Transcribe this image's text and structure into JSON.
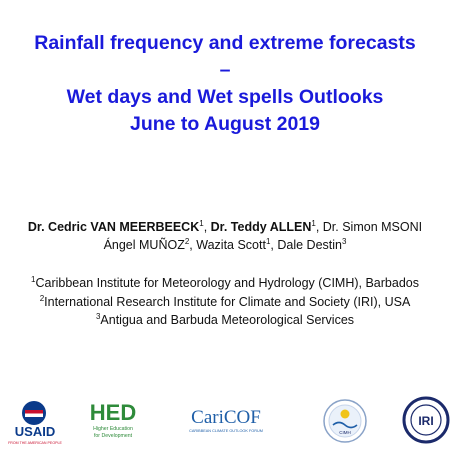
{
  "title": {
    "line1": "Rainfall frequency and extreme forecasts",
    "line2": "–",
    "line3": "Wet days and Wet spells Outlooks",
    "line4": "June to August 2019"
  },
  "authors": {
    "a1_name": "Dr. Cedric VAN MEERBEECK",
    "a1_sup": "1",
    "a2_name": "Dr. Teddy ALLEN",
    "a2_sup": "1",
    "a3_name": "Dr. Simon MSONI",
    "a4_name": "Ángel MUÑOZ",
    "a4_sup": "2",
    "a5_name": "Wazita Scott",
    "a5_sup": "1",
    "a6_name": "Dale Destin",
    "a6_sup": "3"
  },
  "affiliations": [
    {
      "sup": "1",
      "text": "Caribbean Institute for Meteorology and Hydrology (CIMH), Barbados"
    },
    {
      "sup": "2",
      "text": "International Research Institute for Climate and Society (IRI), USA"
    },
    {
      "sup": "3",
      "text": "Antigua and Barbuda Meteorological Services"
    }
  ],
  "logos": {
    "usaid": {
      "wordmark": "USAID",
      "tagline": "FROM THE AMERICAN PEOPLE"
    },
    "hed": {
      "wordmark": "HED",
      "tagline1": "Higher Education",
      "tagline2": "for Development"
    },
    "caricof": {
      "wordmark": "CariCOF",
      "tagline": "CARIBBEAN CLIMATE OUTLOOK FORUM"
    },
    "cimh": {
      "wordmark": "CIMH"
    },
    "iri": {
      "wordmark": "IRI"
    }
  },
  "colors": {
    "title": "#1a1adb",
    "usaid_blue": "#0a3a8a",
    "usaid_red": "#c8102e",
    "hed_green": "#2e8b3a",
    "caricof_blue": "#1f5fa8",
    "iri_navy": "#1b2a6b"
  }
}
